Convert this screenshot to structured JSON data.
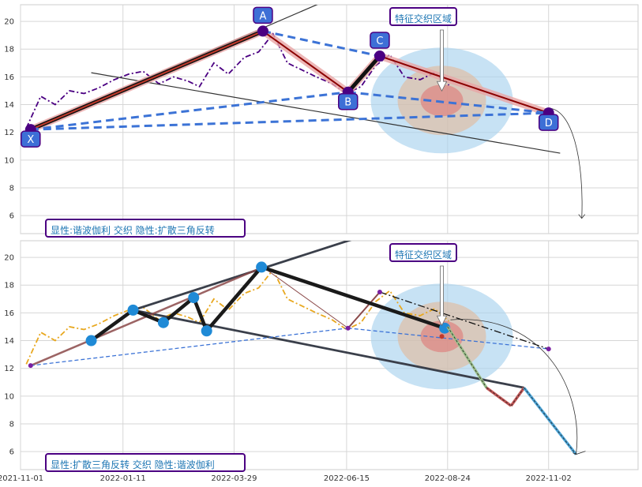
{
  "chart_data": [
    {
      "type": "line",
      "ylim": [
        4.7,
        21.2
      ],
      "xlim": [
        "2021-11-01",
        "2023-01-03"
      ],
      "yticks": [
        6,
        8,
        10,
        12,
        14,
        16,
        18,
        20
      ],
      "ytick_labels": [
        "6",
        "8",
        "10",
        "12",
        "14",
        "16",
        "18",
        "20"
      ],
      "grid": true,
      "price_series": {
        "color": "#4b0082",
        "style": "dashdot",
        "x": [
          "2021-11-05",
          "2021-11-15",
          "2021-11-25",
          "2021-12-05",
          "2021-12-15",
          "2021-12-25",
          "2022-01-05",
          "2022-01-15",
          "2022-01-25",
          "2022-02-05",
          "2022-02-15",
          "2022-02-25",
          "2022-03-05",
          "2022-03-15",
          "2022-03-25",
          "2022-04-05",
          "2022-04-15",
          "2022-04-25",
          "2022-05-05",
          "2022-05-15",
          "2022-05-25",
          "2022-06-05",
          "2022-06-15",
          "2022-06-25",
          "2022-07-05",
          "2022-07-15",
          "2022-07-25",
          "2022-08-05",
          "2022-08-15",
          "2022-08-25"
        ],
        "y": [
          12.3,
          14.6,
          14.0,
          15.0,
          14.8,
          15.2,
          15.8,
          16.2,
          16.4,
          15.5,
          16.0,
          15.7,
          15.3,
          17.0,
          16.2,
          17.4,
          17.8,
          19.1,
          17.0,
          16.5,
          16.0,
          15.5,
          14.8,
          15.3,
          16.8,
          17.6,
          16.0,
          15.8,
          16.3,
          15.4
        ]
      },
      "pattern_points": [
        {
          "label": "X",
          "x": "2021-11-08",
          "y": 12.2
        },
        {
          "label": "A",
          "x": "2022-04-18",
          "y": 19.3
        },
        {
          "label": "B",
          "x": "2022-06-16",
          "y": 14.9
        },
        {
          "label": "C",
          "x": "2022-07-08",
          "y": 17.5
        },
        {
          "label": "D",
          "x": "2022-11-02",
          "y": 13.4
        }
      ],
      "zone_center": {
        "x": "2022-08-20",
        "y": 14.3
      },
      "annotation_top": "特征交织区域",
      "annotation_bottom": "显性:谐波伽利 交织 隐性:扩散三角反转"
    },
    {
      "type": "line",
      "ylim": [
        4.7,
        21.2
      ],
      "xlim": [
        "2021-11-01",
        "2023-01-03"
      ],
      "yticks": [
        6,
        8,
        10,
        12,
        14,
        16,
        18,
        20
      ],
      "ytick_labels": [
        "6",
        "8",
        "10",
        "12",
        "14",
        "16",
        "18",
        "20"
      ],
      "xticks": [
        "2021-11-01",
        "2022-01-11",
        "2022-03-29",
        "2022-06-15",
        "2022-08-24",
        "2022-11-02"
      ],
      "xtick_labels": [
        "2021-11-01",
        "2022-01-11",
        "2022-03-29",
        "2022-06-15",
        "2022-08-24",
        "2022-11-02"
      ],
      "grid": true,
      "price_series": {
        "color": "#e8a820",
        "style": "dashdot",
        "x": [
          "2021-11-05",
          "2021-11-15",
          "2021-11-25",
          "2021-12-05",
          "2021-12-15",
          "2021-12-25",
          "2022-01-05",
          "2022-01-15",
          "2022-01-25",
          "2022-02-05",
          "2022-02-15",
          "2022-02-25",
          "2022-03-05",
          "2022-03-15",
          "2022-03-25",
          "2022-04-05",
          "2022-04-15",
          "2022-04-25",
          "2022-05-05",
          "2022-05-15",
          "2022-05-25",
          "2022-06-05",
          "2022-06-15",
          "2022-06-25",
          "2022-07-05",
          "2022-07-15",
          "2022-07-25",
          "2022-08-05",
          "2022-08-15",
          "2022-08-25"
        ],
        "y": [
          12.3,
          14.6,
          14.0,
          15.0,
          14.8,
          15.2,
          15.8,
          16.2,
          16.4,
          15.5,
          16.0,
          15.7,
          15.3,
          17.0,
          16.2,
          17.4,
          17.8,
          19.1,
          17.0,
          16.5,
          16.0,
          15.5,
          14.8,
          15.3,
          16.8,
          17.6,
          16.0,
          15.8,
          16.3,
          15.4
        ]
      },
      "triangle_points": [
        {
          "x": "2021-12-20",
          "y": 14.0
        },
        {
          "x": "2022-01-18",
          "y": 16.2
        },
        {
          "x": "2022-02-08",
          "y": 15.3
        },
        {
          "x": "2022-03-01",
          "y": 17.1
        },
        {
          "x": "2022-03-10",
          "y": 14.7
        },
        {
          "x": "2022-04-17",
          "y": 19.3
        },
        {
          "x": "2022-08-22",
          "y": 14.9
        }
      ],
      "harmonic_points": [
        {
          "x": "2021-11-08",
          "y": 12.2
        },
        {
          "x": "2022-04-18",
          "y": 19.3
        },
        {
          "x": "2022-06-16",
          "y": 14.9
        },
        {
          "x": "2022-07-08",
          "y": 17.5
        },
        {
          "x": "2022-11-02",
          "y": 13.4
        }
      ],
      "projection": [
        {
          "x": "2022-08-24",
          "y": 15.0
        },
        {
          "x": "2022-09-20",
          "y": 10.6
        },
        {
          "x": "2022-10-07",
          "y": 9.3
        },
        {
          "x": "2022-10-16",
          "y": 10.6
        },
        {
          "x": "2022-11-21",
          "y": 5.8
        }
      ],
      "zone_center": {
        "x": "2022-08-20",
        "y": 14.3
      },
      "annotation_top": "特征交织区域",
      "annotation_bottom": "显性:扩散三角反转 交织 隐性:谐波伽利"
    }
  ]
}
